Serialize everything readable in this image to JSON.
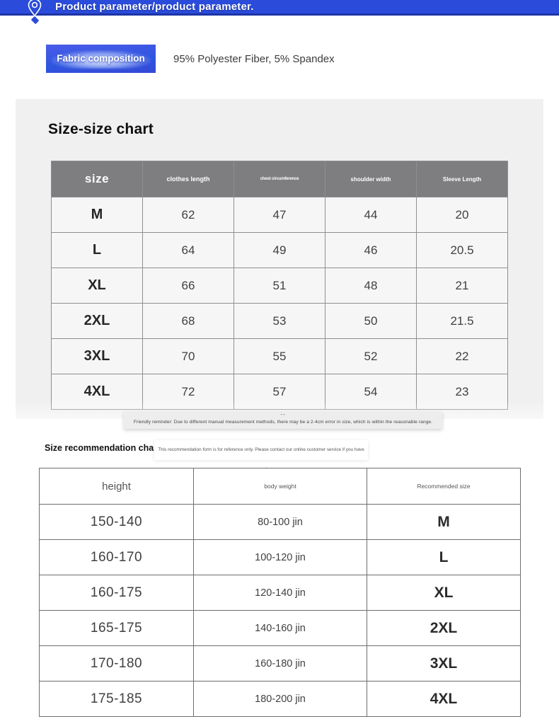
{
  "banner": {
    "title": "Product parameter/product parameter.",
    "bg_color": "#2b4cdb"
  },
  "fabric": {
    "label": "Fabric composition",
    "value": "95% Polyester Fiber, 5% Spandex"
  },
  "size_chart": {
    "title": "Size-size chart",
    "columns": [
      "size",
      "clothes length",
      "chest circumference",
      "shoulder width",
      "Sleeve Length"
    ],
    "rows": [
      [
        "M",
        "62",
        "47",
        "44",
        "20"
      ],
      [
        "L",
        "64",
        "49",
        "46",
        "20.5"
      ],
      [
        "XL",
        "66",
        "51",
        "48",
        "21"
      ],
      [
        "2XL",
        "68",
        "53",
        "50",
        "21.5"
      ],
      [
        "3XL",
        "70",
        "55",
        "52",
        "22"
      ],
      [
        "4XL",
        "72",
        "57",
        "54",
        "23"
      ]
    ],
    "reminder_dashes": "--",
    "reminder": "Friendly reminder: Due to different manual measurement methods, there may be a 2-4cm error in size, which is within the reasonable range.",
    "header_color": "#7e7e80",
    "card_color": "#f0f0f1"
  },
  "recommendation": {
    "title": "Size recommendation chart",
    "note": "This recommendation form is for reference only. Please contact our online customer service if you have any questions.",
    "columns": [
      "height",
      "body weight",
      "Recommended size"
    ],
    "rows": [
      [
        "150-140",
        "80-100 jin",
        "M"
      ],
      [
        "160-170",
        "100-120 jin",
        "L"
      ],
      [
        "160-175",
        "120-140 jin",
        "XL"
      ],
      [
        "165-175",
        "140-160 jin",
        "2XL"
      ],
      [
        "170-180",
        "160-180 jin",
        "3XL"
      ],
      [
        "175-185",
        "180-200 jin",
        "4XL"
      ]
    ]
  }
}
